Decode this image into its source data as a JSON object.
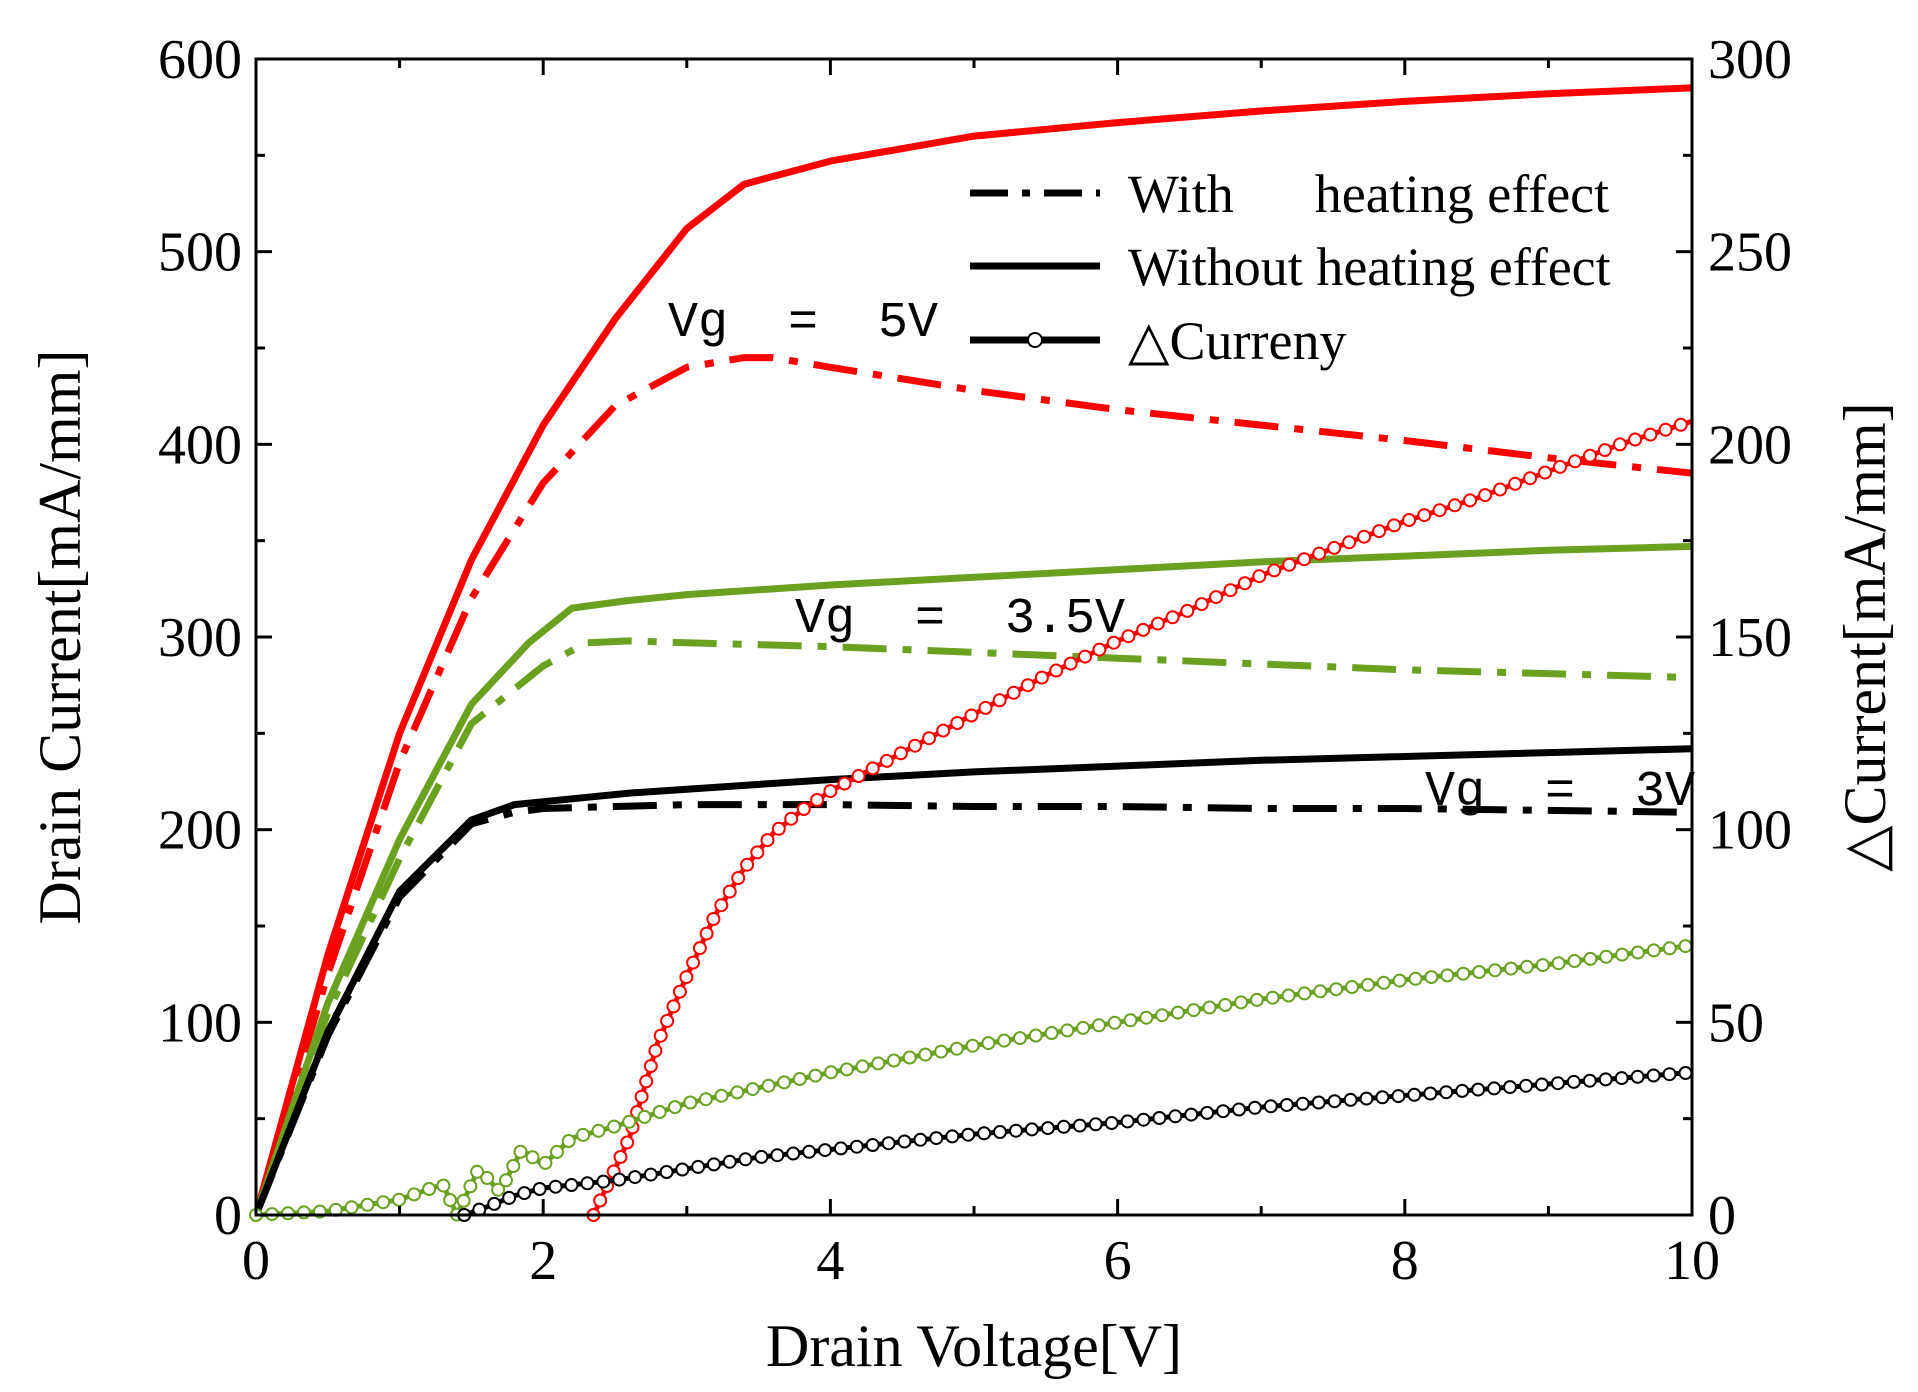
{
  "chart_data": {
    "type": "line",
    "title": "",
    "xlabel": "Drain Voltage[V]",
    "ylabel": "Drain Current[mA/mm]",
    "y2label": "△Current[mA/mm]",
    "xlim": [
      0,
      10
    ],
    "ylim": [
      0,
      600
    ],
    "y2lim": [
      0,
      300
    ],
    "xticks": [
      "0",
      "2",
      "4",
      "6",
      "8",
      "10"
    ],
    "yticks": [
      "0",
      "100",
      "200",
      "300",
      "400",
      "500",
      "600"
    ],
    "y2ticks": [
      "0",
      "50",
      "100",
      "150",
      "200",
      "250",
      "300"
    ],
    "grid": false,
    "legend": {
      "position": "top-right",
      "entries": [
        {
          "label": "With      heating effect",
          "style": "dash-dot"
        },
        {
          "label": "Without heating effect",
          "style": "solid"
        },
        {
          "label": "△Curreny",
          "style": "line-with-circles"
        }
      ]
    },
    "annotations": [
      {
        "text": "Vg  =  5V",
        "x": 3.0,
        "y": 455
      },
      {
        "text": "Vg  =  3.5V",
        "x": 3.8,
        "y": 305
      },
      {
        "text": "Vg  =  3V",
        "x": 8.2,
        "y": 225
      }
    ],
    "series": [
      {
        "name": "Vg = 5V without heating effect",
        "axis": "left",
        "style": "solid",
        "color": "#ff0000",
        "x": [
          0,
          0.5,
          1.0,
          1.5,
          2.0,
          2.5,
          3.0,
          3.4,
          4.0,
          5.0,
          6.0,
          7.0,
          8.0,
          9.0,
          10.0
        ],
        "y": [
          0,
          135,
          250,
          340,
          410,
          465,
          512,
          535,
          547,
          560,
          567,
          573,
          578,
          582,
          585
        ]
      },
      {
        "name": "Vg = 5V with heating effect",
        "axis": "left",
        "style": "dash-dot",
        "color": "#ff0000",
        "x": [
          0,
          0.5,
          1.0,
          1.5,
          2.0,
          2.5,
          3.0,
          3.4,
          3.6,
          4.0,
          5.0,
          6.0,
          7.0,
          8.0,
          9.0,
          10.0
        ],
        "y": [
          0,
          125,
          235,
          320,
          380,
          420,
          440,
          445,
          445,
          440,
          428,
          418,
          410,
          402,
          393,
          385
        ]
      },
      {
        "name": "Vg = 3.5V without heating effect",
        "axis": "left",
        "style": "solid",
        "color": "#6aa121",
        "x": [
          0,
          0.5,
          1.0,
          1.5,
          1.9,
          2.2,
          2.6,
          3.0,
          4.0,
          5.0,
          6.0,
          7.0,
          8.0,
          9.0,
          10.0
        ],
        "y": [
          0,
          110,
          195,
          265,
          297,
          315,
          319,
          322,
          327,
          331,
          335,
          339,
          342,
          345,
          347
        ]
      },
      {
        "name": "Vg = 3.5V with heating effect",
        "axis": "left",
        "style": "dash-dot",
        "color": "#6aa121",
        "x": [
          0,
          0.5,
          1.0,
          1.5,
          2.0,
          2.3,
          2.6,
          3.0,
          4.0,
          5.0,
          6.0,
          7.0,
          8.0,
          9.0,
          10.0
        ],
        "y": [
          0,
          105,
          185,
          255,
          285,
          297,
          298,
          297,
          295,
          292,
          289,
          286,
          283,
          281,
          279
        ]
      },
      {
        "name": "Vg = 3V without heating effect",
        "axis": "left",
        "style": "solid",
        "color": "#000000",
        "x": [
          0,
          0.5,
          1.0,
          1.5,
          1.8,
          2.2,
          2.6,
          3.0,
          4.0,
          5.0,
          6.0,
          7.0,
          8.0,
          9.0,
          10.0
        ],
        "y": [
          0,
          95,
          168,
          205,
          213,
          216,
          219,
          221,
          226,
          230,
          233,
          236,
          238,
          240,
          242
        ]
      },
      {
        "name": "Vg = 3V with heating effect",
        "axis": "left",
        "style": "dash-dot",
        "color": "#000000",
        "x": [
          0,
          0.5,
          1.0,
          1.5,
          1.8,
          2.0,
          2.5,
          3.0,
          4.0,
          5.0,
          6.0,
          7.0,
          8.0,
          9.0,
          10.0
        ],
        "y": [
          0,
          93,
          165,
          203,
          209,
          211,
          212,
          213,
          213,
          212,
          212,
          211,
          211,
          210,
          209
        ]
      },
      {
        "name": "△Current Vg = 5V",
        "axis": "right",
        "style": "line-with-circles",
        "color": "#ff0000",
        "x": [
          2.35,
          2.6,
          2.8,
          3.0,
          3.2,
          3.4,
          3.6,
          3.8,
          4.0,
          4.5,
          5.0,
          5.5,
          6.0,
          6.5,
          7.0,
          7.5,
          8.0,
          8.5,
          9.0,
          9.5,
          10.0
        ],
        "y": [
          0,
          20,
          45,
          62,
          78,
          90,
          99,
          105,
          110,
          120,
          130,
          140,
          149,
          157,
          166,
          173,
          180,
          186,
          193,
          200,
          206
        ]
      },
      {
        "name": "△Current Vg = 3.5V",
        "axis": "right",
        "style": "line-with-circles",
        "color": "#6aa121",
        "x": [
          0,
          0.5,
          1.0,
          1.3,
          1.4,
          1.55,
          1.7,
          1.85,
          2.0,
          2.2,
          2.5,
          3.0,
          3.5,
          4.0,
          5.0,
          6.0,
          7.0,
          8.0,
          9.0,
          10.0
        ],
        "y": [
          0,
          1,
          4,
          8,
          0,
          12,
          6,
          17,
          13,
          20,
          23,
          29,
          33,
          37,
          44,
          50,
          56,
          61,
          65,
          70
        ]
      },
      {
        "name": "△Current Vg = 3V",
        "axis": "right",
        "style": "line-with-circles",
        "color": "#000000",
        "x": [
          1.45,
          1.6,
          1.8,
          2.0,
          2.5,
          3.0,
          3.5,
          4.0,
          5.0,
          6.0,
          7.0,
          8.0,
          9.0,
          10.0
        ],
        "y": [
          0,
          2,
          5,
          7,
          9,
          12,
          15,
          17,
          21,
          24,
          28,
          31,
          34,
          37
        ]
      }
    ]
  }
}
